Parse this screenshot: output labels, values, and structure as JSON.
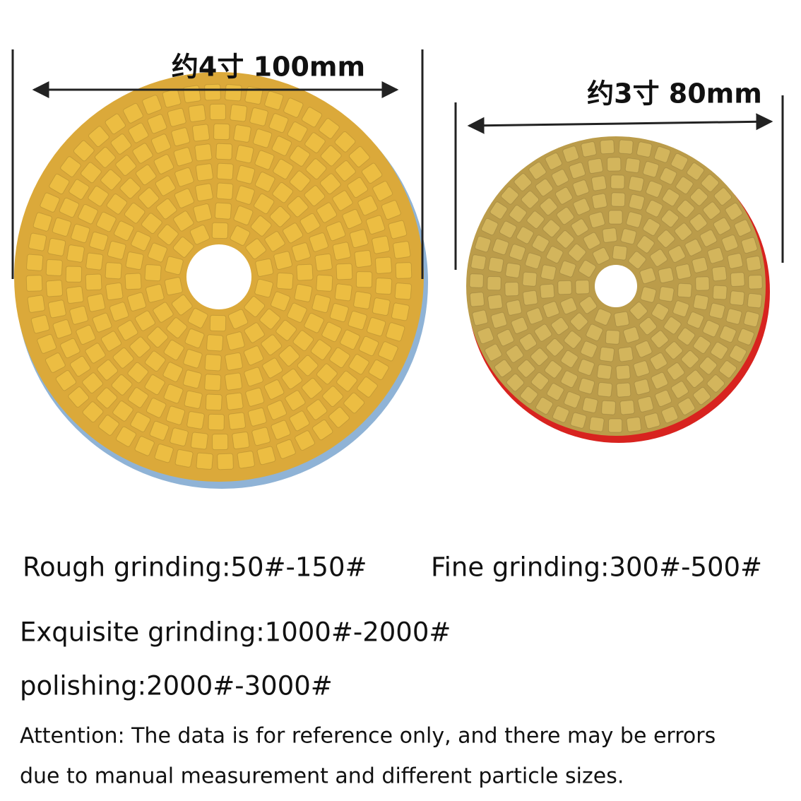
{
  "dimensions": [
    {
      "label": "约4寸 100mm"
    },
    {
      "label": "约3寸 80mm"
    }
  ],
  "grades": [
    "Rough grinding:50#-150#",
    "Fine grinding:300#-500#",
    "Exquisite grinding:1000#-2000#",
    "polishing:2000#-3000#"
  ],
  "attention": [
    "Attention: The data is for reference only, and there may be errors",
    "due to manual measurement and different particle sizes."
  ]
}
